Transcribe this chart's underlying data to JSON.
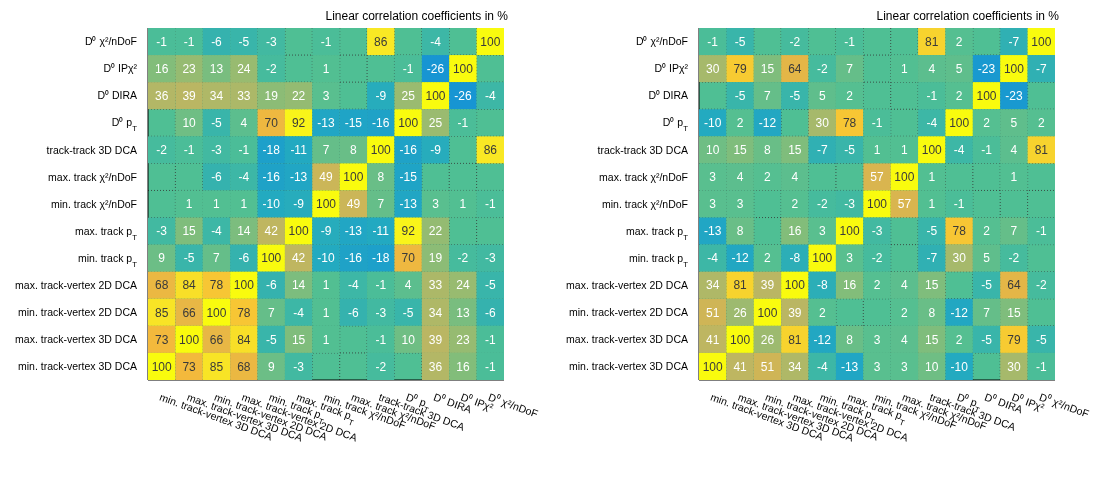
{
  "chart_data": [
    {
      "type": "heatmap",
      "title": "Linear correlation coefficients in %",
      "grid": true,
      "data_labels": true,
      "categories": [
        "min. track-vertex 3D DCA",
        "max. track-vertex 3D DCA",
        "min. track-vertex 2D DCA",
        "max. track-vertex 2D DCA",
        "min. track p$_{T}$",
        "max. track p$_{T}$",
        "min. track χ²/nDoF",
        "max. track χ²/nDoF",
        "track-track 3D DCA",
        "D⁰ p$_{T}$",
        "D⁰ DIRA",
        "D⁰ IPχ²",
        "D⁰ χ²/nDoF"
      ],
      "y_categories": [
        "D⁰ χ²/nDoF",
        "D⁰ IPχ²",
        "D⁰ DIRA",
        "D⁰ p$_{T}$",
        "track-track 3D DCA",
        "max. track χ²/nDoF",
        "min. track χ²/nDoF",
        "max. track p$_{T}$",
        "min. track p$_{T}$",
        "max. track-vertex 2D DCA",
        "min. track-vertex 2D DCA",
        "max. track-vertex 3D DCA",
        "min. track-vertex 3D DCA"
      ],
      "cells": [
        [
          -1,
          -1,
          -6,
          -5,
          -3,
          null,
          -1,
          null,
          86,
          null,
          -4,
          null,
          100
        ],
        [
          16,
          23,
          13,
          24,
          -2,
          null,
          1,
          null,
          null,
          -1,
          -26,
          100,
          null
        ],
        [
          36,
          39,
          34,
          33,
          19,
          22,
          3,
          null,
          -9,
          25,
          100,
          -26,
          -4
        ],
        [
          null,
          10,
          -5,
          4,
          70,
          92,
          -13,
          -15,
          -16,
          100,
          25,
          -1,
          null
        ],
        [
          -2,
          -1,
          -3,
          -1,
          -18,
          -11,
          7,
          8,
          100,
          -16,
          -9,
          null,
          86
        ],
        [
          null,
          null,
          -6,
          -4,
          -16,
          -13,
          49,
          100,
          8,
          -15,
          null,
          null,
          null
        ],
        [
          null,
          1,
          1,
          1,
          -10,
          -9,
          100,
          49,
          7,
          -13,
          3,
          1,
          -1
        ],
        [
          -3,
          15,
          -4,
          14,
          42,
          100,
          -9,
          -13,
          -11,
          92,
          22,
          null,
          null
        ],
        [
          9,
          -5,
          7,
          -6,
          100,
          42,
          -10,
          -16,
          -18,
          70,
          19,
          -2,
          -3
        ],
        [
          68,
          84,
          78,
          100,
          -6,
          14,
          1,
          -4,
          -1,
          4,
          33,
          24,
          -5
        ],
        [
          85,
          66,
          100,
          78,
          7,
          -4,
          1,
          -6,
          -3,
          -5,
          34,
          13,
          -6
        ],
        [
          73,
          100,
          66,
          84,
          -5,
          15,
          1,
          null,
          -1,
          10,
          39,
          23,
          -1
        ],
        [
          100,
          73,
          85,
          68,
          9,
          -3,
          null,
          null,
          -2,
          null,
          36,
          16,
          -1
        ]
      ]
    },
    {
      "type": "heatmap",
      "title": "Linear correlation coefficients in %",
      "grid": true,
      "data_labels": true,
      "categories": [
        "min. track-vertex 3D DCA",
        "max. track-vertex 3D DCA",
        "min. track-vertex 2D DCA",
        "max. track-vertex 2D DCA",
        "min. track p$_{T}$",
        "max. track p$_{T}$",
        "min. track χ²/nDoF",
        "max. track χ²/nDoF",
        "track-track 3D DCA",
        "D⁰ p$_{T}$",
        "D⁰ DIRA",
        "D⁰ IPχ²",
        "D⁰ χ²/nDoF"
      ],
      "y_categories": [
        "D⁰ χ²/nDoF",
        "D⁰ IPχ²",
        "D⁰ DIRA",
        "D⁰ p$_{T}$",
        "track-track 3D DCA",
        "max. track χ²/nDoF",
        "min. track χ²/nDoF",
        "max. track p$_{T}$",
        "min. track p$_{T}$",
        "max. track-vertex 2D DCA",
        "min. track-vertex 2D DCA",
        "max. track-vertex 3D DCA",
        "min. track-vertex 3D DCA"
      ],
      "cells": [
        [
          -1,
          -5,
          null,
          -2,
          null,
          -1,
          null,
          null,
          81,
          2,
          null,
          -7,
          100
        ],
        [
          30,
          79,
          15,
          64,
          -2,
          7,
          null,
          1,
          4,
          5,
          -23,
          100,
          -7
        ],
        [
          null,
          -5,
          7,
          -5,
          5,
          2,
          null,
          null,
          -1,
          2,
          100,
          -23,
          null
        ],
        [
          -10,
          2,
          -12,
          null,
          30,
          78,
          -1,
          null,
          -4,
          100,
          2,
          5,
          2
        ],
        [
          10,
          15,
          8,
          15,
          -7,
          -5,
          1,
          1,
          100,
          -4,
          -1,
          4,
          81
        ],
        [
          3,
          4,
          2,
          4,
          null,
          null,
          57,
          100,
          1,
          null,
          null,
          1,
          null
        ],
        [
          3,
          3,
          null,
          2,
          -2,
          -3,
          100,
          57,
          1,
          -1,
          null,
          null,
          null
        ],
        [
          -13,
          8,
          null,
          16,
          3,
          100,
          -3,
          null,
          -5,
          78,
          2,
          7,
          -1
        ],
        [
          -4,
          -12,
          2,
          -8,
          100,
          3,
          -2,
          null,
          -7,
          30,
          5,
          -2,
          null
        ],
        [
          34,
          81,
          39,
          100,
          -8,
          16,
          2,
          4,
          15,
          null,
          -5,
          64,
          -2
        ],
        [
          51,
          26,
          100,
          39,
          2,
          null,
          null,
          2,
          8,
          -12,
          7,
          15,
          null
        ],
        [
          41,
          100,
          26,
          81,
          -12,
          8,
          3,
          4,
          15,
          2,
          -5,
          79,
          -5
        ],
        [
          100,
          41,
          51,
          34,
          -4,
          -13,
          3,
          3,
          10,
          -10,
          null,
          30,
          -1
        ]
      ]
    }
  ]
}
